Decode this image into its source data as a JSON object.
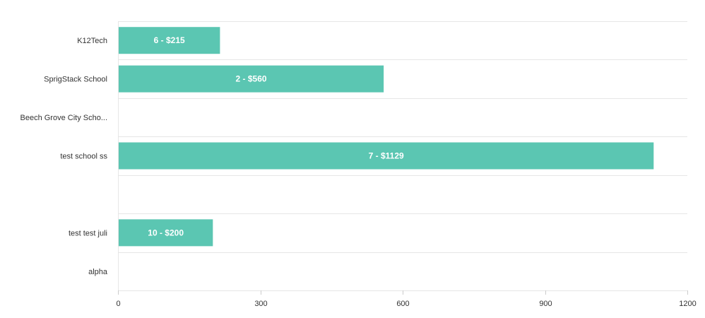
{
  "chart_data": {
    "type": "bar",
    "orientation": "horizontal",
    "categories": [
      "K12Tech",
      "SprigStack School",
      "Beech Grove City Scho...",
      "test school ss",
      "",
      "test test juli",
      "alpha"
    ],
    "values": [
      215,
      560,
      null,
      1129,
      null,
      200,
      null
    ],
    "data_labels": [
      "6 - $215",
      "2 - $560",
      "",
      "7 - $1129",
      "",
      "10 - $200",
      ""
    ],
    "x_ticks": [
      "0",
      "300",
      "600",
      "900",
      "1200"
    ],
    "xlim": [
      0,
      1200
    ],
    "title": "",
    "xlabel": "",
    "ylabel": "",
    "grid": true,
    "legend": "none",
    "colors": {
      "bar": "#5bc6b2",
      "grid": "#e6e6e6",
      "axis": "#cccccc",
      "text": "#333333",
      "label": "#ffffff"
    }
  }
}
